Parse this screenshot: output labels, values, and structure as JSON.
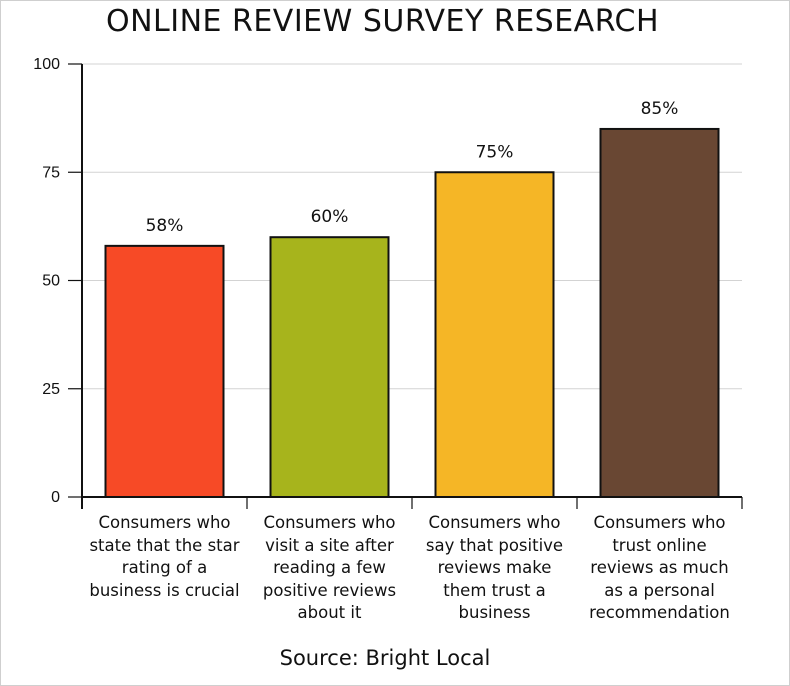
{
  "chart_data": {
    "type": "bar",
    "title": "ONLINE REVIEW SURVEY RESEARCH",
    "categories": [
      "Consumers who state that the star rating of a business is crucial",
      "Consumers who visit a site after reading a few positive reviews about it",
      "Consumers who say that positive reviews make them trust a business",
      "Consumers who trust online reviews as much as a personal recommendation"
    ],
    "values": [
      58,
      60,
      75,
      85
    ],
    "value_labels": [
      "58%",
      "60%",
      "75%",
      "85%"
    ],
    "colors": [
      "#f74a26",
      "#a7b41c",
      "#f5b626",
      "#694733"
    ],
    "ylim": [
      0,
      100
    ],
    "yticks": [
      0,
      25,
      50,
      75,
      100
    ],
    "grid": true,
    "xlabel": "",
    "ylabel": "",
    "source": "Source: Bright Local"
  }
}
